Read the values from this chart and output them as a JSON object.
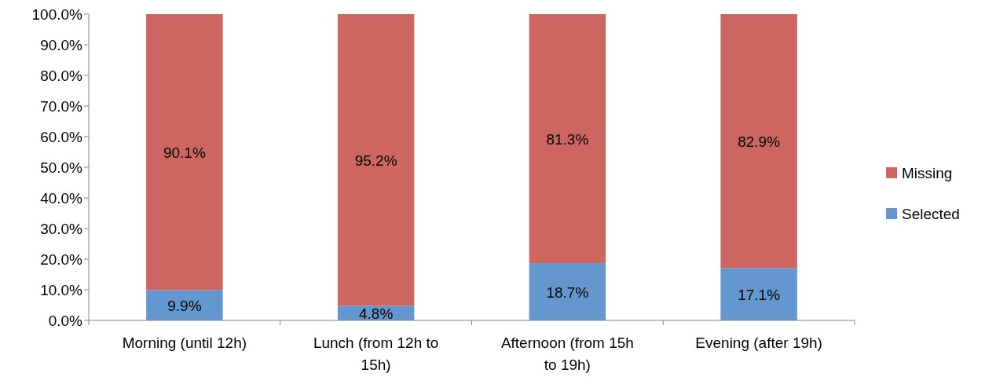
{
  "chart_data": {
    "type": "bar",
    "stacked": true,
    "categories": [
      "Morning (until 12h)",
      "Lunch (from 12h to 15h)",
      "Afternoon (from 15h to 19h)",
      "Evening (after 19h)"
    ],
    "series": [
      {
        "name": "Selected",
        "color": "#6497cd",
        "values": [
          9.9,
          4.8,
          18.7,
          17.1
        ],
        "value_labels": [
          "9.9%",
          "4.8%",
          "18.7%",
          "17.1%"
        ]
      },
      {
        "name": "Missing",
        "color": "#cd6660",
        "values": [
          90.1,
          95.2,
          81.3,
          82.9
        ],
        "value_labels": [
          "90.1%",
          "95.2%",
          "81.3%",
          "82.9%"
        ]
      }
    ],
    "ylim": [
      0,
      100
    ],
    "yticks": [
      {
        "value": 0,
        "label": "0.0%"
      },
      {
        "value": 10,
        "label": "10.0%"
      },
      {
        "value": 20,
        "label": "20.0%"
      },
      {
        "value": 30,
        "label": "30.0%"
      },
      {
        "value": 40,
        "label": "40.0%"
      },
      {
        "value": 50,
        "label": "50.0%"
      },
      {
        "value": 60,
        "label": "60.0%"
      },
      {
        "value": 70,
        "label": "70.0%"
      },
      {
        "value": 80,
        "label": "80.0%"
      },
      {
        "value": 90,
        "label": "90.0%"
      },
      {
        "value": 100,
        "label": "100.0%"
      }
    ],
    "grid": false,
    "legend": "right"
  }
}
